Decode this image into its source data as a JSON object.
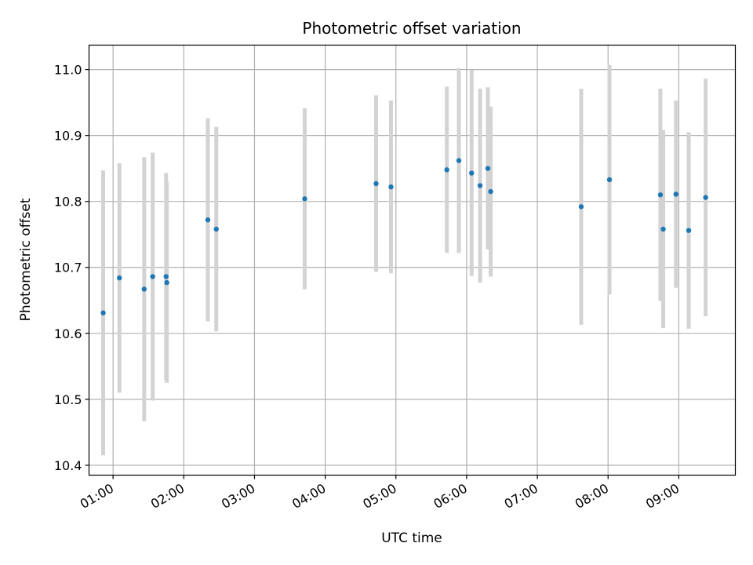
{
  "chart_data": {
    "type": "scatter",
    "title": "Photometric offset variation",
    "xlabel": "UTC time",
    "ylabel": "Photometric offset",
    "x_unit": "hours UTC",
    "xlim": [
      0.66,
      9.8
    ],
    "ylim": [
      10.385,
      11.037
    ],
    "x_ticks": [
      {
        "value": 1,
        "label": "01:00"
      },
      {
        "value": 2,
        "label": "02:00"
      },
      {
        "value": 3,
        "label": "03:00"
      },
      {
        "value": 4,
        "label": "04:00"
      },
      {
        "value": 5,
        "label": "05:00"
      },
      {
        "value": 6,
        "label": "06:00"
      },
      {
        "value": 7,
        "label": "07:00"
      },
      {
        "value": 8,
        "label": "08:00"
      },
      {
        "value": 9,
        "label": "09:00"
      }
    ],
    "y_ticks": [
      {
        "value": 10.4,
        "label": "10.4"
      },
      {
        "value": 10.5,
        "label": "10.5"
      },
      {
        "value": 10.6,
        "label": "10.6"
      },
      {
        "value": 10.7,
        "label": "10.7"
      },
      {
        "value": 10.8,
        "label": "10.8"
      },
      {
        "value": 10.9,
        "label": "10.9"
      },
      {
        "value": 11.0,
        "label": "11.0"
      }
    ],
    "grid": true,
    "legend": "none",
    "point_color": "#1f77b4",
    "errorbar_color": "#d3d3d3",
    "points": [
      {
        "x": 0.86,
        "y": 10.631,
        "err": 0.216
      },
      {
        "x": 1.09,
        "y": 10.684,
        "err": 0.174
      },
      {
        "x": 1.44,
        "y": 10.667,
        "err": 0.2
      },
      {
        "x": 1.56,
        "y": 10.686,
        "err": 0.188
      },
      {
        "x": 1.75,
        "y": 10.686,
        "err": 0.157
      },
      {
        "x": 1.76,
        "y": 10.677,
        "err": 0.152
      },
      {
        "x": 2.34,
        "y": 10.772,
        "err": 0.154
      },
      {
        "x": 2.46,
        "y": 10.758,
        "err": 0.155
      },
      {
        "x": 3.71,
        "y": 10.804,
        "err": 0.137
      },
      {
        "x": 4.72,
        "y": 10.827,
        "err": 0.134
      },
      {
        "x": 4.93,
        "y": 10.822,
        "err": 0.131
      },
      {
        "x": 5.72,
        "y": 10.848,
        "err": 0.126
      },
      {
        "x": 5.89,
        "y": 10.862,
        "err": 0.14
      },
      {
        "x": 6.07,
        "y": 10.843,
        "err": 0.156
      },
      {
        "x": 6.19,
        "y": 10.824,
        "err": 0.147
      },
      {
        "x": 6.3,
        "y": 10.85,
        "err": 0.123
      },
      {
        "x": 6.34,
        "y": 10.815,
        "err": 0.129
      },
      {
        "x": 7.62,
        "y": 10.792,
        "err": 0.179
      },
      {
        "x": 8.02,
        "y": 10.833,
        "err": 0.174
      },
      {
        "x": 8.74,
        "y": 10.81,
        "err": 0.161
      },
      {
        "x": 8.78,
        "y": 10.758,
        "err": 0.15
      },
      {
        "x": 8.96,
        "y": 10.811,
        "err": 0.142
      },
      {
        "x": 9.14,
        "y": 10.756,
        "err": 0.149
      },
      {
        "x": 9.38,
        "y": 10.806,
        "err": 0.18
      }
    ]
  }
}
